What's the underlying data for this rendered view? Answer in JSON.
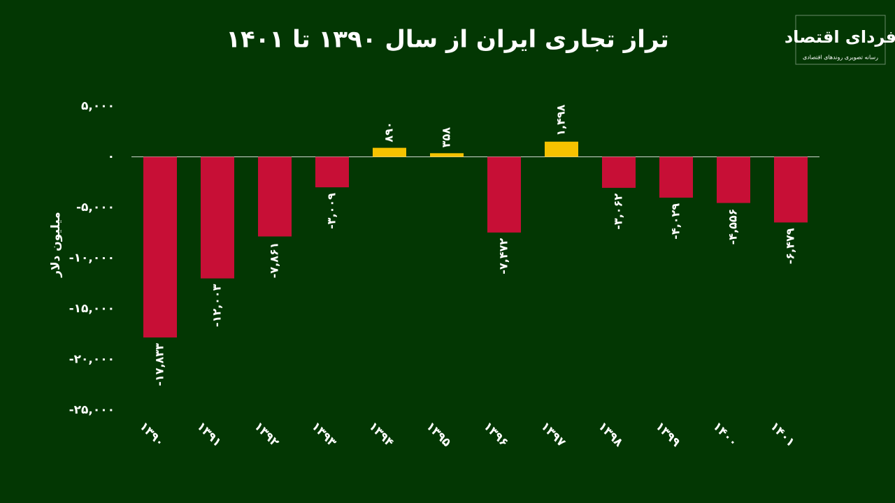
{
  "logo": {
    "title": "فردای اقتصاد",
    "subtitle": "رسانه تصویری روندهای اقتصادی"
  },
  "chart_data": {
    "type": "bar",
    "title": "تراز تجاری ایران از سال ۱۳۹۰ تا ۱۴۰۱",
    "y_label": "میلیون دلار",
    "categories": [
      "۱۳۹۰",
      "۱۳۹۱",
      "۱۳۹۲",
      "۱۳۹۳",
      "۱۳۹۴",
      "۱۳۹۵",
      "۱۳۹۶",
      "۱۳۹۷",
      "۱۳۹۸",
      "۱۳۹۹",
      "۱۴۰۰",
      "۱۴۰۱"
    ],
    "values": [
      -17833,
      -12003,
      -7861,
      -3009,
      890,
      358,
      -7472,
      1498,
      -3062,
      -4029,
      -4556,
      -6479
    ],
    "value_labels": [
      "-۱۷,۸۳۳",
      "-۱۲,۰۰۳",
      "-۷,۸۶۱",
      "-۳,۰۰۹",
      "۸۹۰",
      "۳۵۸",
      "-۷,۴۷۲",
      "۱,۴۹۸",
      "-۳,۰۶۲",
      "-۴,۰۲۹",
      "-۴,۵۵۶",
      "-۶,۴۷۹"
    ],
    "colors": [
      "#c70f36",
      "#c70f36",
      "#c70f36",
      "#c70f36",
      "#f6c200",
      "#f6c200",
      "#c70f36",
      "#f6c200",
      "#c70f36",
      "#c70f36",
      "#c70f36",
      "#c70f36"
    ],
    "ylim": [
      -25000,
      5000
    ],
    "yticks": [
      {
        "value": 5000,
        "label": "۵,۰۰۰"
      },
      {
        "value": 0,
        "label": "۰"
      },
      {
        "value": -5000,
        "label": "-۵,۰۰۰"
      },
      {
        "value": -10000,
        "label": "-۱۰,۰۰۰"
      },
      {
        "value": -15000,
        "label": "-۱۵,۰۰۰"
      },
      {
        "value": -20000,
        "label": "-۲۰,۰۰۰"
      },
      {
        "value": -25000,
        "label": "-۲۵,۰۰۰"
      }
    ],
    "grid": false
  }
}
